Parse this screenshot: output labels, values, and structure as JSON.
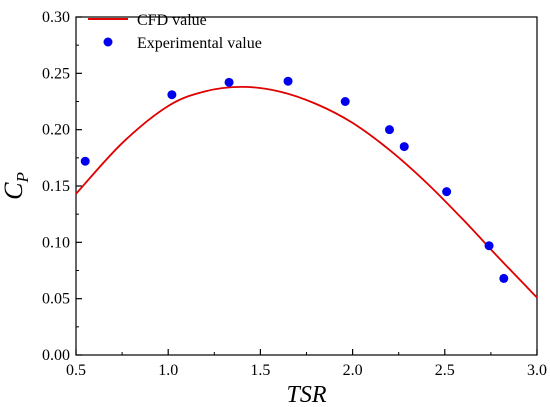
{
  "chart_data": {
    "type": "line",
    "xlabel": "TSR",
    "ylabel": "C",
    "ylabel_subscript": "P",
    "xlim": [
      0.5,
      3.0
    ],
    "ylim": [
      0.0,
      0.3
    ],
    "x_ticks": [
      "0.5",
      "1.0",
      "1.5",
      "2.0",
      "2.5",
      "3.0"
    ],
    "y_ticks": [
      "0.00",
      "0.05",
      "0.10",
      "0.15",
      "0.20",
      "0.25",
      "0.30"
    ],
    "grid": false,
    "legend_position": "top-left",
    "series": [
      {
        "name": "CFD value",
        "kind": "line",
        "color": "#e00000",
        "x": [
          0.5,
          0.75,
          1.0,
          1.2,
          1.4,
          1.6,
          1.8,
          2.0,
          2.2,
          2.4,
          2.6,
          2.8,
          3.0
        ],
        "y": [
          0.143,
          0.188,
          0.221,
          0.234,
          0.238,
          0.234,
          0.223,
          0.206,
          0.182,
          0.153,
          0.12,
          0.085,
          0.051
        ]
      },
      {
        "name": "Experimental value",
        "kind": "scatter",
        "color": "#0000ee",
        "x": [
          0.55,
          1.02,
          1.33,
          1.65,
          1.96,
          2.2,
          2.28,
          2.51,
          2.74,
          2.82
        ],
        "y": [
          0.172,
          0.231,
          0.242,
          0.243,
          0.225,
          0.2,
          0.185,
          0.145,
          0.097,
          0.068
        ]
      }
    ]
  }
}
